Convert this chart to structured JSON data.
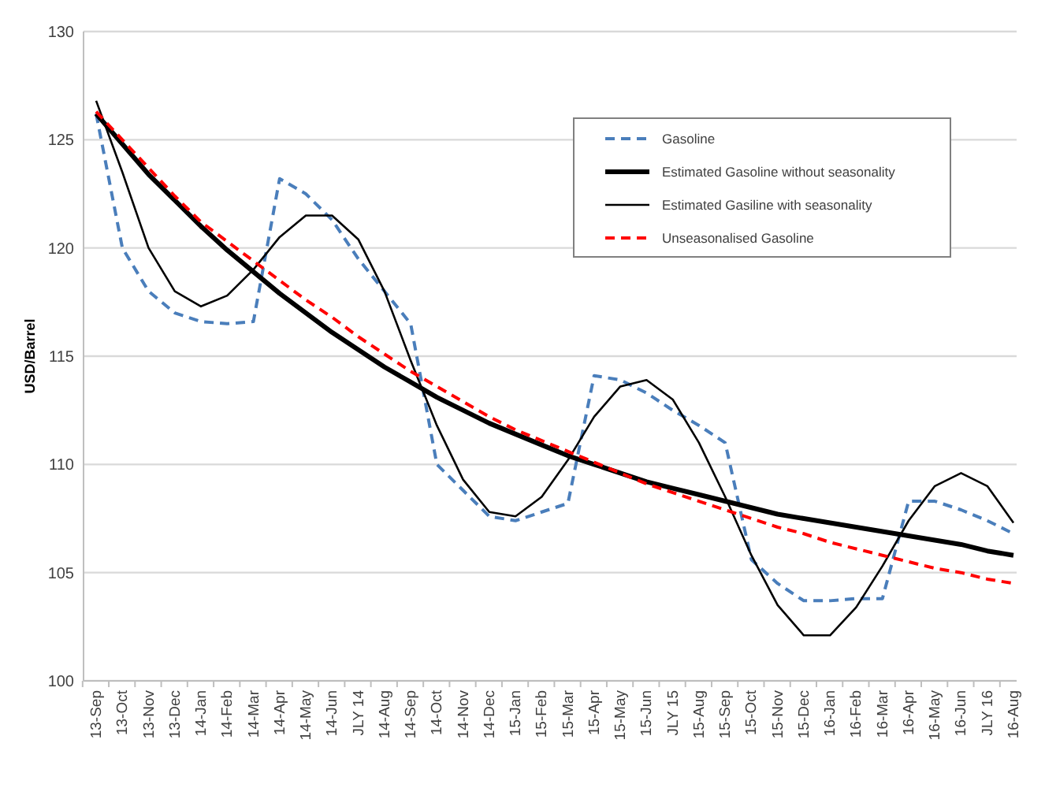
{
  "chart_data": {
    "type": "line",
    "ylabel": "USD/Barrel",
    "categories": [
      "13-Sep",
      "13-Oct",
      "13-Nov",
      "13-Dec",
      "14-Jan",
      "14-Feb",
      "14-Mar",
      "14-Apr",
      "14-May",
      "14-Jun",
      "JLY 14",
      "14-Aug",
      "14-Sep",
      "14-Oct",
      "14-Nov",
      "14-Dec",
      "15-Jan",
      "15-Feb",
      "15-Mar",
      "15-Apr",
      "15-May",
      "15-Jun",
      "JLY 15",
      "15-Aug",
      "15-Sep",
      "15-Oct",
      "15-Nov",
      "15-Dec",
      "16-Jan",
      "16-Feb",
      "16-Mar",
      "16-Apr",
      "16-May",
      "16-Jun",
      "JLY 16",
      "16-Aug"
    ],
    "ylim": [
      100,
      130
    ],
    "yticks": [
      100,
      105,
      110,
      115,
      120,
      125,
      130
    ],
    "grid": "y",
    "legend": "top right",
    "series": [
      {
        "name": "Gasoline",
        "color": "#4a7ebb",
        "line_style": "dashed",
        "values": [
          126.2,
          120.0,
          118.0,
          117.0,
          116.6,
          116.5,
          116.6,
          123.2,
          122.5,
          121.3,
          119.5,
          118.0,
          116.5,
          110.0,
          108.8,
          107.6,
          107.4,
          107.8,
          108.2,
          114.1,
          113.9,
          113.3,
          112.5,
          111.8,
          111.0,
          105.6,
          104.5,
          103.7,
          103.7,
          103.8,
          103.8,
          108.3,
          108.3,
          107.9,
          107.4,
          106.8
        ]
      },
      {
        "name": "Estimated Gasoline without seasonality",
        "color": "#000000",
        "line_style": "solid",
        "values": [
          126.2,
          124.8,
          123.4,
          122.2,
          121.0,
          119.9,
          118.9,
          117.9,
          117.0,
          116.1,
          115.3,
          114.5,
          113.8,
          113.1,
          112.5,
          111.9,
          111.4,
          110.9,
          110.4,
          110.0,
          109.6,
          109.2,
          108.9,
          108.6,
          108.3,
          108.0,
          107.7,
          107.5,
          107.3,
          107.1,
          106.9,
          106.7,
          106.5,
          106.3,
          106.0,
          105.8
        ]
      },
      {
        "name": "Estimated Gasiline with seasonality",
        "color": "#000000",
        "line_style": "solid",
        "values": [
          126.8,
          123.5,
          120.0,
          118.0,
          117.3,
          117.8,
          119.0,
          120.5,
          121.5,
          121.5,
          120.4,
          118.0,
          114.8,
          111.8,
          109.3,
          107.8,
          107.6,
          108.5,
          110.2,
          112.2,
          113.6,
          113.9,
          113.0,
          111.0,
          108.5,
          105.8,
          103.5,
          102.1,
          102.1,
          103.4,
          105.3,
          107.4,
          109.0,
          109.6,
          109.0,
          107.3
        ]
      },
      {
        "name": "Unseasonalised Gasoline",
        "color": "#ff0000",
        "line_style": "dashed",
        "values": [
          126.3,
          125.0,
          123.7,
          122.4,
          121.2,
          120.3,
          119.4,
          118.5,
          117.6,
          116.8,
          115.9,
          115.1,
          114.3,
          113.6,
          112.9,
          112.2,
          111.6,
          111.1,
          110.6,
          110.1,
          109.6,
          109.1,
          108.7,
          108.3,
          107.9,
          107.5,
          107.1,
          106.8,
          106.4,
          106.1,
          105.8,
          105.5,
          105.2,
          105.0,
          104.7,
          104.5
        ]
      }
    ]
  }
}
